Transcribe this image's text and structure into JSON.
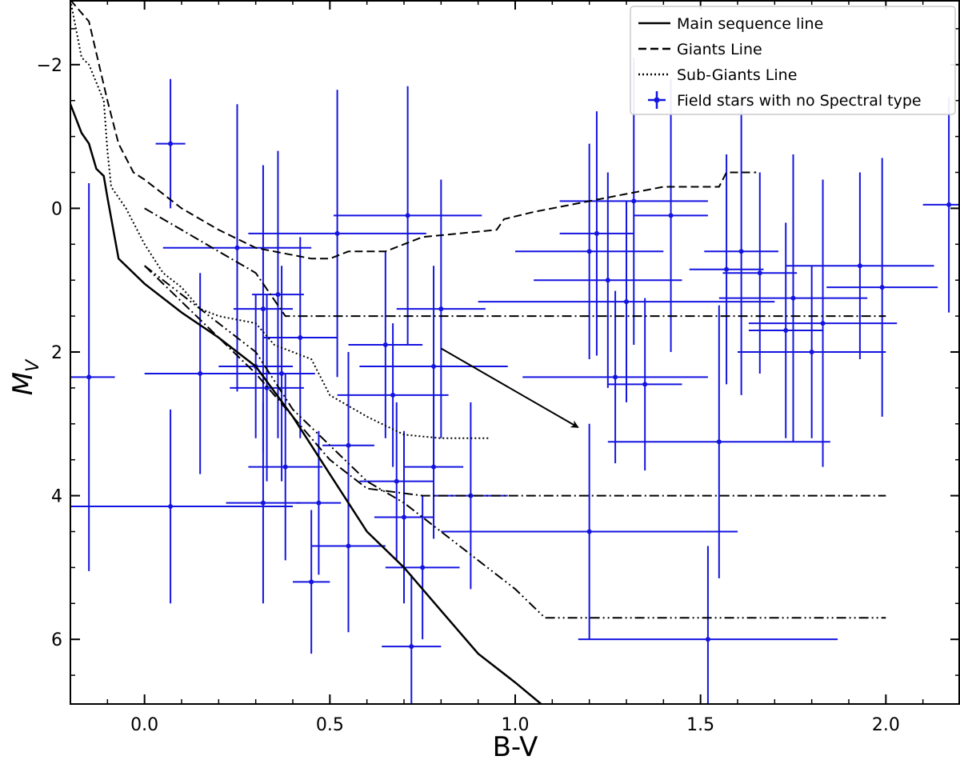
{
  "chart_data": {
    "type": "scatter",
    "title": "",
    "xlabel": "B-V",
    "ylabel_main": "M",
    "ylabel_sub": "V",
    "xlim": [
      -0.2,
      2.2
    ],
    "ylim": [
      6.9,
      -2.9
    ],
    "y_inverted": true,
    "xticks": [
      0.0,
      0.5,
      1.0,
      1.5,
      2.0
    ],
    "xtick_labels": [
      "0.0",
      "0.5",
      "1.0",
      "1.5",
      "2.0"
    ],
    "yticks": [
      -2,
      0,
      2,
      4,
      6
    ],
    "ytick_labels": [
      "−2",
      "0",
      "2",
      "4",
      "6"
    ],
    "grid": false,
    "legend_position": "top-right",
    "colors": {
      "points": "#1414e0",
      "lines": "#000000"
    },
    "lines": [
      {
        "name": "Main sequence line",
        "style": "solid",
        "points": [
          [
            -0.2,
            -1.45
          ],
          [
            -0.17,
            -1.05
          ],
          [
            -0.15,
            -0.9
          ],
          [
            -0.13,
            -0.55
          ],
          [
            -0.11,
            -0.45
          ],
          [
            -0.1,
            -0.15
          ],
          [
            -0.07,
            0.7
          ],
          [
            0.0,
            1.05
          ],
          [
            0.1,
            1.45
          ],
          [
            0.2,
            1.8
          ],
          [
            0.3,
            2.2
          ],
          [
            0.4,
            2.9
          ],
          [
            0.5,
            3.7
          ],
          [
            0.6,
            4.5
          ],
          [
            0.7,
            5.0
          ],
          [
            0.8,
            5.6
          ],
          [
            0.9,
            6.2
          ],
          [
            1.0,
            6.6
          ],
          [
            1.07,
            6.9
          ]
        ]
      },
      {
        "name": "Giants Line",
        "style": "dashed",
        "points": [
          [
            -0.2,
            -2.9
          ],
          [
            -0.15,
            -2.6
          ],
          [
            -0.1,
            -1.5
          ],
          [
            -0.07,
            -0.9
          ],
          [
            -0.03,
            -0.5
          ],
          [
            0.0,
            -0.4
          ],
          [
            0.1,
            0.0
          ],
          [
            0.2,
            0.3
          ],
          [
            0.3,
            0.55
          ],
          [
            0.4,
            0.65
          ],
          [
            0.45,
            0.7
          ],
          [
            0.5,
            0.7
          ],
          [
            0.55,
            0.6
          ],
          [
            0.65,
            0.6
          ],
          [
            0.75,
            0.4
          ],
          [
            0.85,
            0.35
          ],
          [
            0.95,
            0.3
          ],
          [
            0.97,
            0.15
          ],
          [
            1.05,
            0.05
          ],
          [
            1.2,
            -0.1
          ],
          [
            1.3,
            -0.2
          ],
          [
            1.4,
            -0.3
          ],
          [
            1.55,
            -0.3
          ],
          [
            1.57,
            -0.5
          ],
          [
            1.6,
            -0.5
          ],
          [
            1.65,
            -0.5
          ]
        ]
      },
      {
        "name": "Sub-Giants Line",
        "style": "dotted",
        "points": [
          [
            -0.2,
            -2.9
          ],
          [
            -0.17,
            -2.1
          ],
          [
            -0.15,
            -2.0
          ],
          [
            -0.11,
            -1.5
          ],
          [
            -0.1,
            -0.8
          ],
          [
            -0.09,
            -0.3
          ],
          [
            -0.05,
            0.0
          ],
          [
            0.0,
            0.5
          ],
          [
            0.05,
            0.9
          ],
          [
            0.1,
            1.1
          ],
          [
            0.15,
            1.4
          ],
          [
            0.2,
            1.5
          ],
          [
            0.3,
            1.6
          ],
          [
            0.35,
            1.9
          ],
          [
            0.45,
            2.1
          ],
          [
            0.5,
            2.6
          ],
          [
            0.6,
            2.9
          ],
          [
            0.7,
            3.15
          ],
          [
            0.8,
            3.2
          ],
          [
            0.93,
            3.2
          ]
        ]
      }
    ],
    "reference_lines": [
      {
        "style": "dash-dot",
        "points": [
          [
            0.0,
            0.0
          ],
          [
            0.1,
            0.3
          ],
          [
            0.2,
            0.6
          ],
          [
            0.3,
            0.9
          ],
          [
            0.38,
            1.5
          ],
          [
            2.0,
            1.5
          ]
        ]
      },
      {
        "style": "dash-dot",
        "points": [
          [
            0.0,
            0.8
          ],
          [
            0.1,
            1.3
          ],
          [
            0.2,
            1.8
          ],
          [
            0.3,
            2.3
          ],
          [
            0.4,
            2.9
          ],
          [
            0.5,
            3.5
          ],
          [
            0.6,
            3.9
          ],
          [
            0.75,
            4.0
          ],
          [
            2.0,
            4.0
          ]
        ]
      },
      {
        "style": "dash-dot-dot",
        "points": [
          [
            0.0,
            0.8
          ],
          [
            0.2,
            1.6
          ],
          [
            0.3,
            2.0
          ],
          [
            0.4,
            2.8
          ],
          [
            0.5,
            3.3
          ],
          [
            0.6,
            3.8
          ],
          [
            0.7,
            4.1
          ],
          [
            0.8,
            4.5
          ],
          [
            0.9,
            4.9
          ],
          [
            1.0,
            5.3
          ],
          [
            1.08,
            5.7
          ],
          [
            2.0,
            5.7
          ]
        ]
      }
    ],
    "arrow": {
      "from": [
        0.8,
        1.95
      ],
      "to": [
        1.17,
        3.05
      ]
    },
    "series": [
      {
        "name": "Field stars with no Spectral type",
        "points": [
          {
            "x": -0.15,
            "y": 2.35,
            "xerr": 0.07,
            "yerr": 2.7
          },
          {
            "x": 0.07,
            "y": -0.9,
            "xerr": 0.04,
            "yerr": 0.9
          },
          {
            "x": 0.07,
            "y": 4.15,
            "xerr": 0.33,
            "yerr": 1.35
          },
          {
            "x": 0.15,
            "y": 2.3,
            "xerr": 0.15,
            "yerr": 1.4
          },
          {
            "x": 0.25,
            "y": 0.55,
            "xerr": 0.2,
            "yerr": 2.0
          },
          {
            "x": 0.3,
            "y": 2.2,
            "xerr": 0.1,
            "yerr": 1.0
          },
          {
            "x": 0.32,
            "y": 1.4,
            "xerr": 0.08,
            "yerr": 2.0
          },
          {
            "x": 0.33,
            "y": 2.5,
            "xerr": 0.1,
            "yerr": 1.3
          },
          {
            "x": 0.32,
            "y": 4.1,
            "xerr": 0.1,
            "yerr": 1.4
          },
          {
            "x": 0.36,
            "y": 1.2,
            "xerr": 0.07,
            "yerr": 2.0
          },
          {
            "x": 0.37,
            "y": 2.3,
            "xerr": 0.09,
            "yerr": 1.5
          },
          {
            "x": 0.38,
            "y": 3.6,
            "xerr": 0.1,
            "yerr": 1.3
          },
          {
            "x": 0.42,
            "y": 1.8,
            "xerr": 0.1,
            "yerr": 1.4
          },
          {
            "x": 0.45,
            "y": 5.2,
            "xerr": 0.05,
            "yerr": 1.0
          },
          {
            "x": 0.47,
            "y": 4.1,
            "xerr": 0.06,
            "yerr": 1.0
          },
          {
            "x": 0.52,
            "y": 0.35,
            "xerr": 0.24,
            "yerr": 2.0
          },
          {
            "x": 0.55,
            "y": 3.3,
            "xerr": 0.07,
            "yerr": 1.3
          },
          {
            "x": 0.55,
            "y": 4.7,
            "xerr": 0.1,
            "yerr": 1.2
          },
          {
            "x": 0.65,
            "y": 1.9,
            "xerr": 0.1,
            "yerr": 1.3
          },
          {
            "x": 0.67,
            "y": 2.6,
            "xerr": 0.15,
            "yerr": 1.0
          },
          {
            "x": 0.68,
            "y": 3.8,
            "xerr": 0.1,
            "yerr": 1.1
          },
          {
            "x": 0.71,
            "y": 0.1,
            "xerr": 0.2,
            "yerr": 1.8
          },
          {
            "x": 0.7,
            "y": 4.3,
            "xerr": 0.08,
            "yerr": 1.2
          },
          {
            "x": 0.72,
            "y": 6.1,
            "xerr": 0.08,
            "yerr": 1.0
          },
          {
            "x": 0.75,
            "y": 5.0,
            "xerr": 0.1,
            "yerr": 1.0
          },
          {
            "x": 0.78,
            "y": 2.2,
            "xerr": 0.2,
            "yerr": 1.4
          },
          {
            "x": 0.78,
            "y": 3.6,
            "xerr": 0.08,
            "yerr": 1.0
          },
          {
            "x": 0.8,
            "y": 1.4,
            "xerr": 0.12,
            "yerr": 1.8
          },
          {
            "x": 0.88,
            "y": 4.0,
            "xerr": 0.1,
            "yerr": 1.3
          },
          {
            "x": 1.2,
            "y": 4.5,
            "xerr": 0.4,
            "yerr": 1.5
          },
          {
            "x": 1.22,
            "y": 0.35,
            "xerr": 0.1,
            "yerr": 1.7
          },
          {
            "x": 1.2,
            "y": 0.6,
            "xerr": 0.2,
            "yerr": 1.5
          },
          {
            "x": 1.25,
            "y": 1.0,
            "xerr": 0.2,
            "yerr": 1.5
          },
          {
            "x": 1.3,
            "y": 1.3,
            "xerr": 0.4,
            "yerr": 1.4
          },
          {
            "x": 1.27,
            "y": 2.35,
            "xerr": 0.25,
            "yerr": 1.2
          },
          {
            "x": 1.32,
            "y": -0.1,
            "xerr": 0.2,
            "yerr": 2.0
          },
          {
            "x": 1.35,
            "y": 2.45,
            "xerr": 0.1,
            "yerr": 1.2
          },
          {
            "x": 1.42,
            "y": 0.1,
            "xerr": 0.1,
            "yerr": 1.9
          },
          {
            "x": 1.52,
            "y": 6.0,
            "xerr": 0.35,
            "yerr": 1.3
          },
          {
            "x": 1.55,
            "y": 3.25,
            "xerr": 0.3,
            "yerr": 1.9
          },
          {
            "x": 1.57,
            "y": 0.85,
            "xerr": 0.1,
            "yerr": 1.6
          },
          {
            "x": 1.61,
            "y": 0.6,
            "xerr": 0.1,
            "yerr": 2.0
          },
          {
            "x": 1.66,
            "y": 0.9,
            "xerr": 0.1,
            "yerr": 1.4
          },
          {
            "x": 1.73,
            "y": 1.7,
            "xerr": 0.1,
            "yerr": 1.5
          },
          {
            "x": 1.75,
            "y": 1.25,
            "xerr": 0.2,
            "yerr": 2.0
          },
          {
            "x": 1.8,
            "y": 2.0,
            "xerr": 0.2,
            "yerr": 1.2
          },
          {
            "x": 1.83,
            "y": 1.6,
            "xerr": 0.2,
            "yerr": 2.0
          },
          {
            "x": 1.93,
            "y": 0.8,
            "xerr": 0.2,
            "yerr": 1.3
          },
          {
            "x": 1.99,
            "y": 1.1,
            "xerr": 0.15,
            "yerr": 1.8
          },
          {
            "x": 2.17,
            "y": -0.05,
            "xerr": 0.07,
            "yerr": 1.5
          }
        ]
      }
    ],
    "legend": [
      {
        "label": "Main sequence line",
        "style": "solid"
      },
      {
        "label": "Giants Line",
        "style": "dashed"
      },
      {
        "label": "Sub-Giants Line",
        "style": "dotted"
      },
      {
        "label": "Field stars with no Spectral type",
        "style": "errorbar"
      }
    ]
  }
}
